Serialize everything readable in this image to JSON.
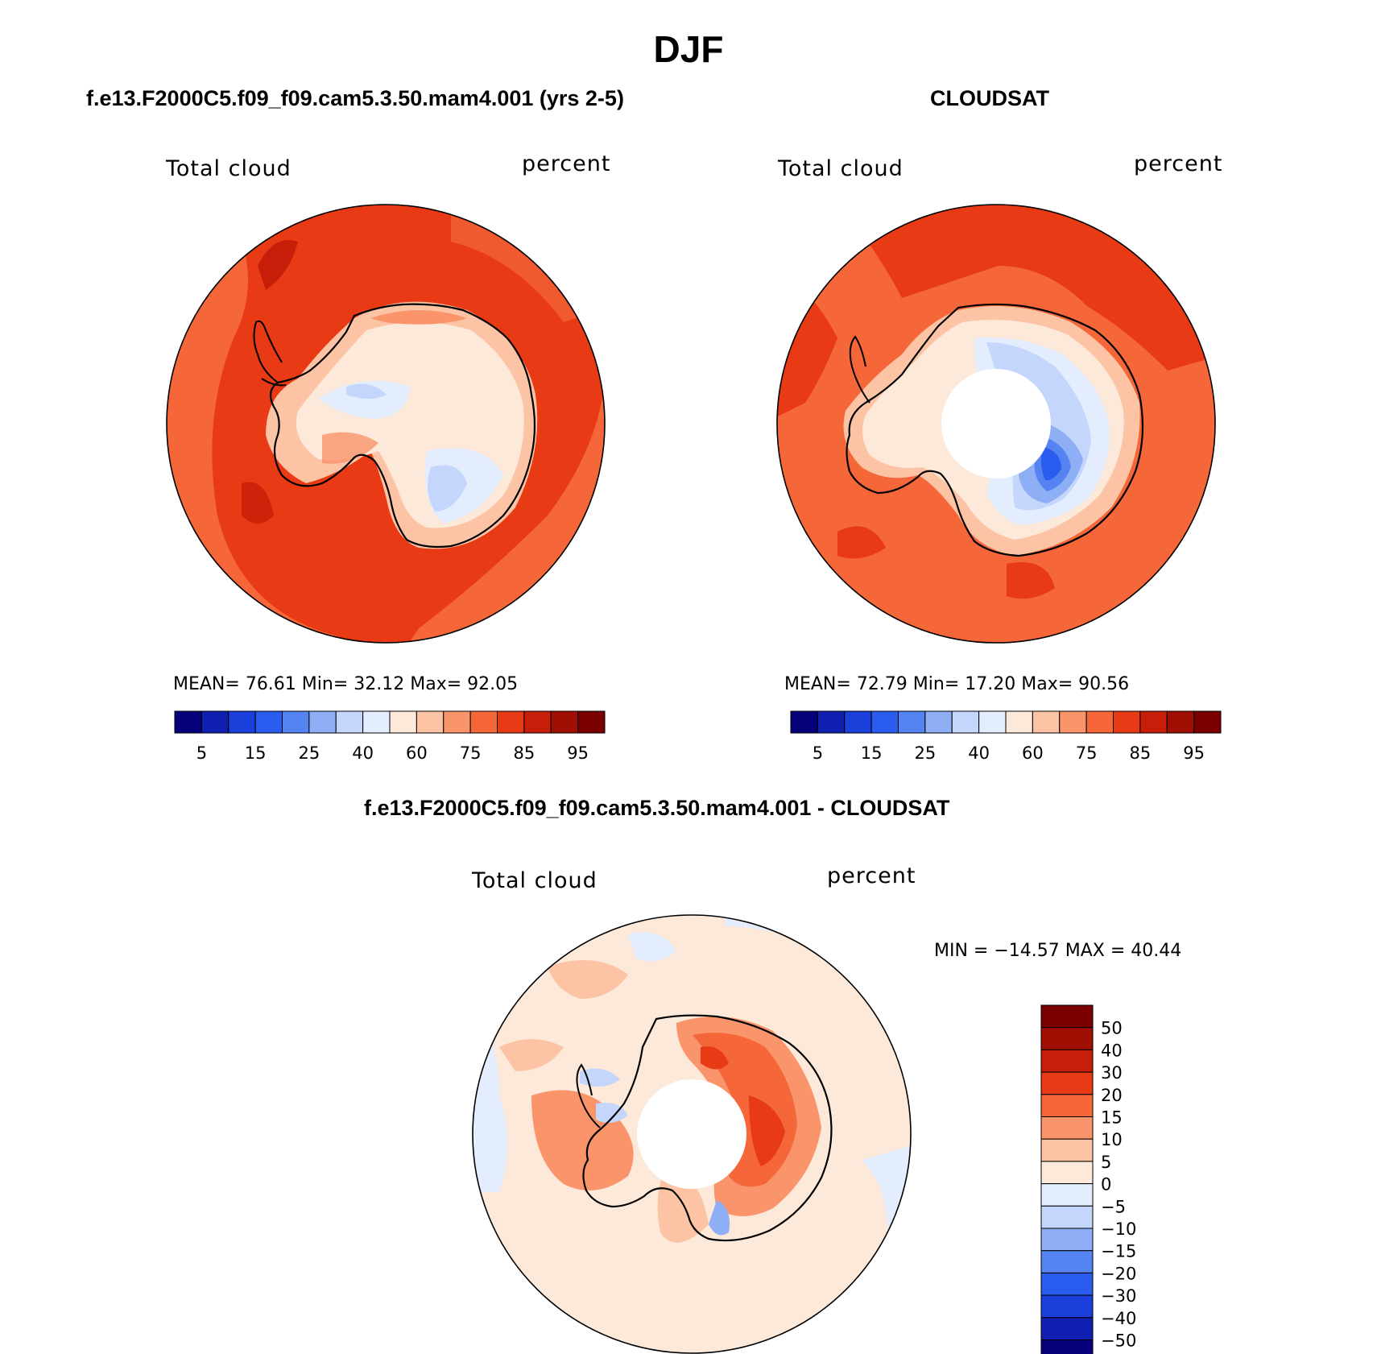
{
  "figure": {
    "title": "DJF"
  },
  "panels": [
    {
      "title": "f.e13.F2000C5.f09_f09.cam5.3.50.mam4.001 (yrs 2-5)",
      "left_label": "Total cloud",
      "right_label": "percent",
      "stats": "MEAN=   76.61   Min=   32.12   Max=   92.05"
    },
    {
      "title": "CLOUDSAT",
      "left_label": "Total cloud",
      "right_label": "percent",
      "stats": "MEAN=   72.79   Min=   17.20   Max=   90.56"
    },
    {
      "title": "f.e13.F2000C5.f09_f09.cam5.3.50.mam4.001 - CLOUDSAT",
      "left_label": "Total cloud",
      "right_label": "percent",
      "stats": "MIN = −14.57 MAX =   40.44"
    }
  ],
  "colorbar_abs": {
    "colors": [
      "#06007a",
      "#0f1fb0",
      "#1a3fdb",
      "#2a5cf0",
      "#5583f2",
      "#8eaef6",
      "#c4d6fb",
      "#e4edfd",
      "#fde9d9",
      "#fcc4a5",
      "#f9946b",
      "#f56739",
      "#e83a14",
      "#c61e08",
      "#a10e04",
      "#7a0000"
    ],
    "tick_labels": [
      "5",
      "15",
      "25",
      "40",
      "60",
      "75",
      "85",
      "95"
    ]
  },
  "colorbar_diff": {
    "colors": [
      "#06007a",
      "#0f1fb0",
      "#1a3fdb",
      "#2a5cf0",
      "#5583f2",
      "#8eaef6",
      "#c4d6fb",
      "#e4edfd",
      "#fde9d9",
      "#fcc4a5",
      "#f9946b",
      "#f56739",
      "#e83a14",
      "#c61e08",
      "#a10e04",
      "#7a0000"
    ],
    "tick_labels": [
      "50",
      "40",
      "30",
      "20",
      "15",
      "10",
      "5",
      "0",
      "−5",
      "−10",
      "−15",
      "−20",
      "−30",
      "−40",
      "−50"
    ]
  }
}
